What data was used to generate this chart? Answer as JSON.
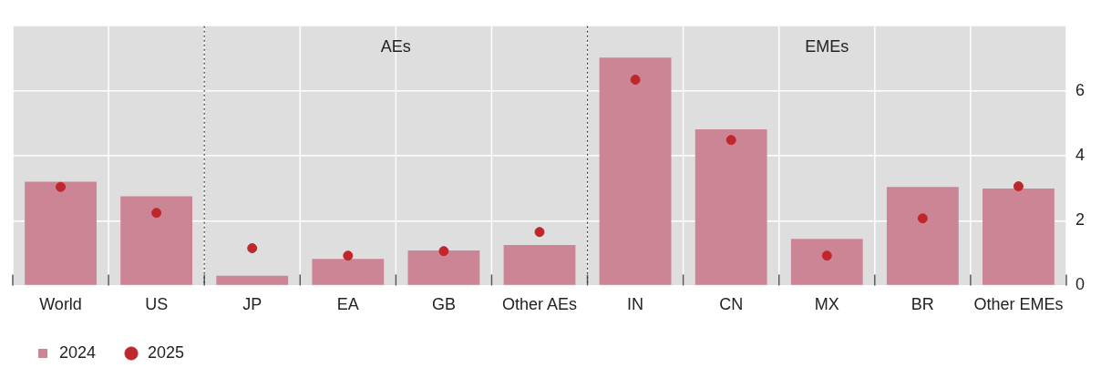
{
  "chart_data": {
    "type": "bar",
    "categories": [
      "World",
      "US",
      "JP",
      "EA",
      "GB",
      "Other AEs",
      "IN",
      "CN",
      "MX",
      "BR",
      "Other EMEs"
    ],
    "series": [
      {
        "name": "2024",
        "color": "#cc8594",
        "values": [
          3.2,
          2.75,
          0.3,
          0.82,
          1.08,
          1.25,
          7.03,
          4.82,
          1.44,
          3.04,
          2.99
        ]
      },
      {
        "name": "2025",
        "type": "scatter",
        "color": "#c0272d",
        "values": [
          3.04,
          2.24,
          1.15,
          0.92,
          1.06,
          1.65,
          6.35,
          4.49,
          0.92,
          2.07,
          3.06
        ]
      }
    ],
    "ylim": [
      0,
      8
    ],
    "yticks": [
      0,
      2,
      4,
      6
    ],
    "grid": true,
    "legend": "bottom left",
    "marker": "circle",
    "annotations": [
      "AEs",
      "EMEs"
    ]
  }
}
